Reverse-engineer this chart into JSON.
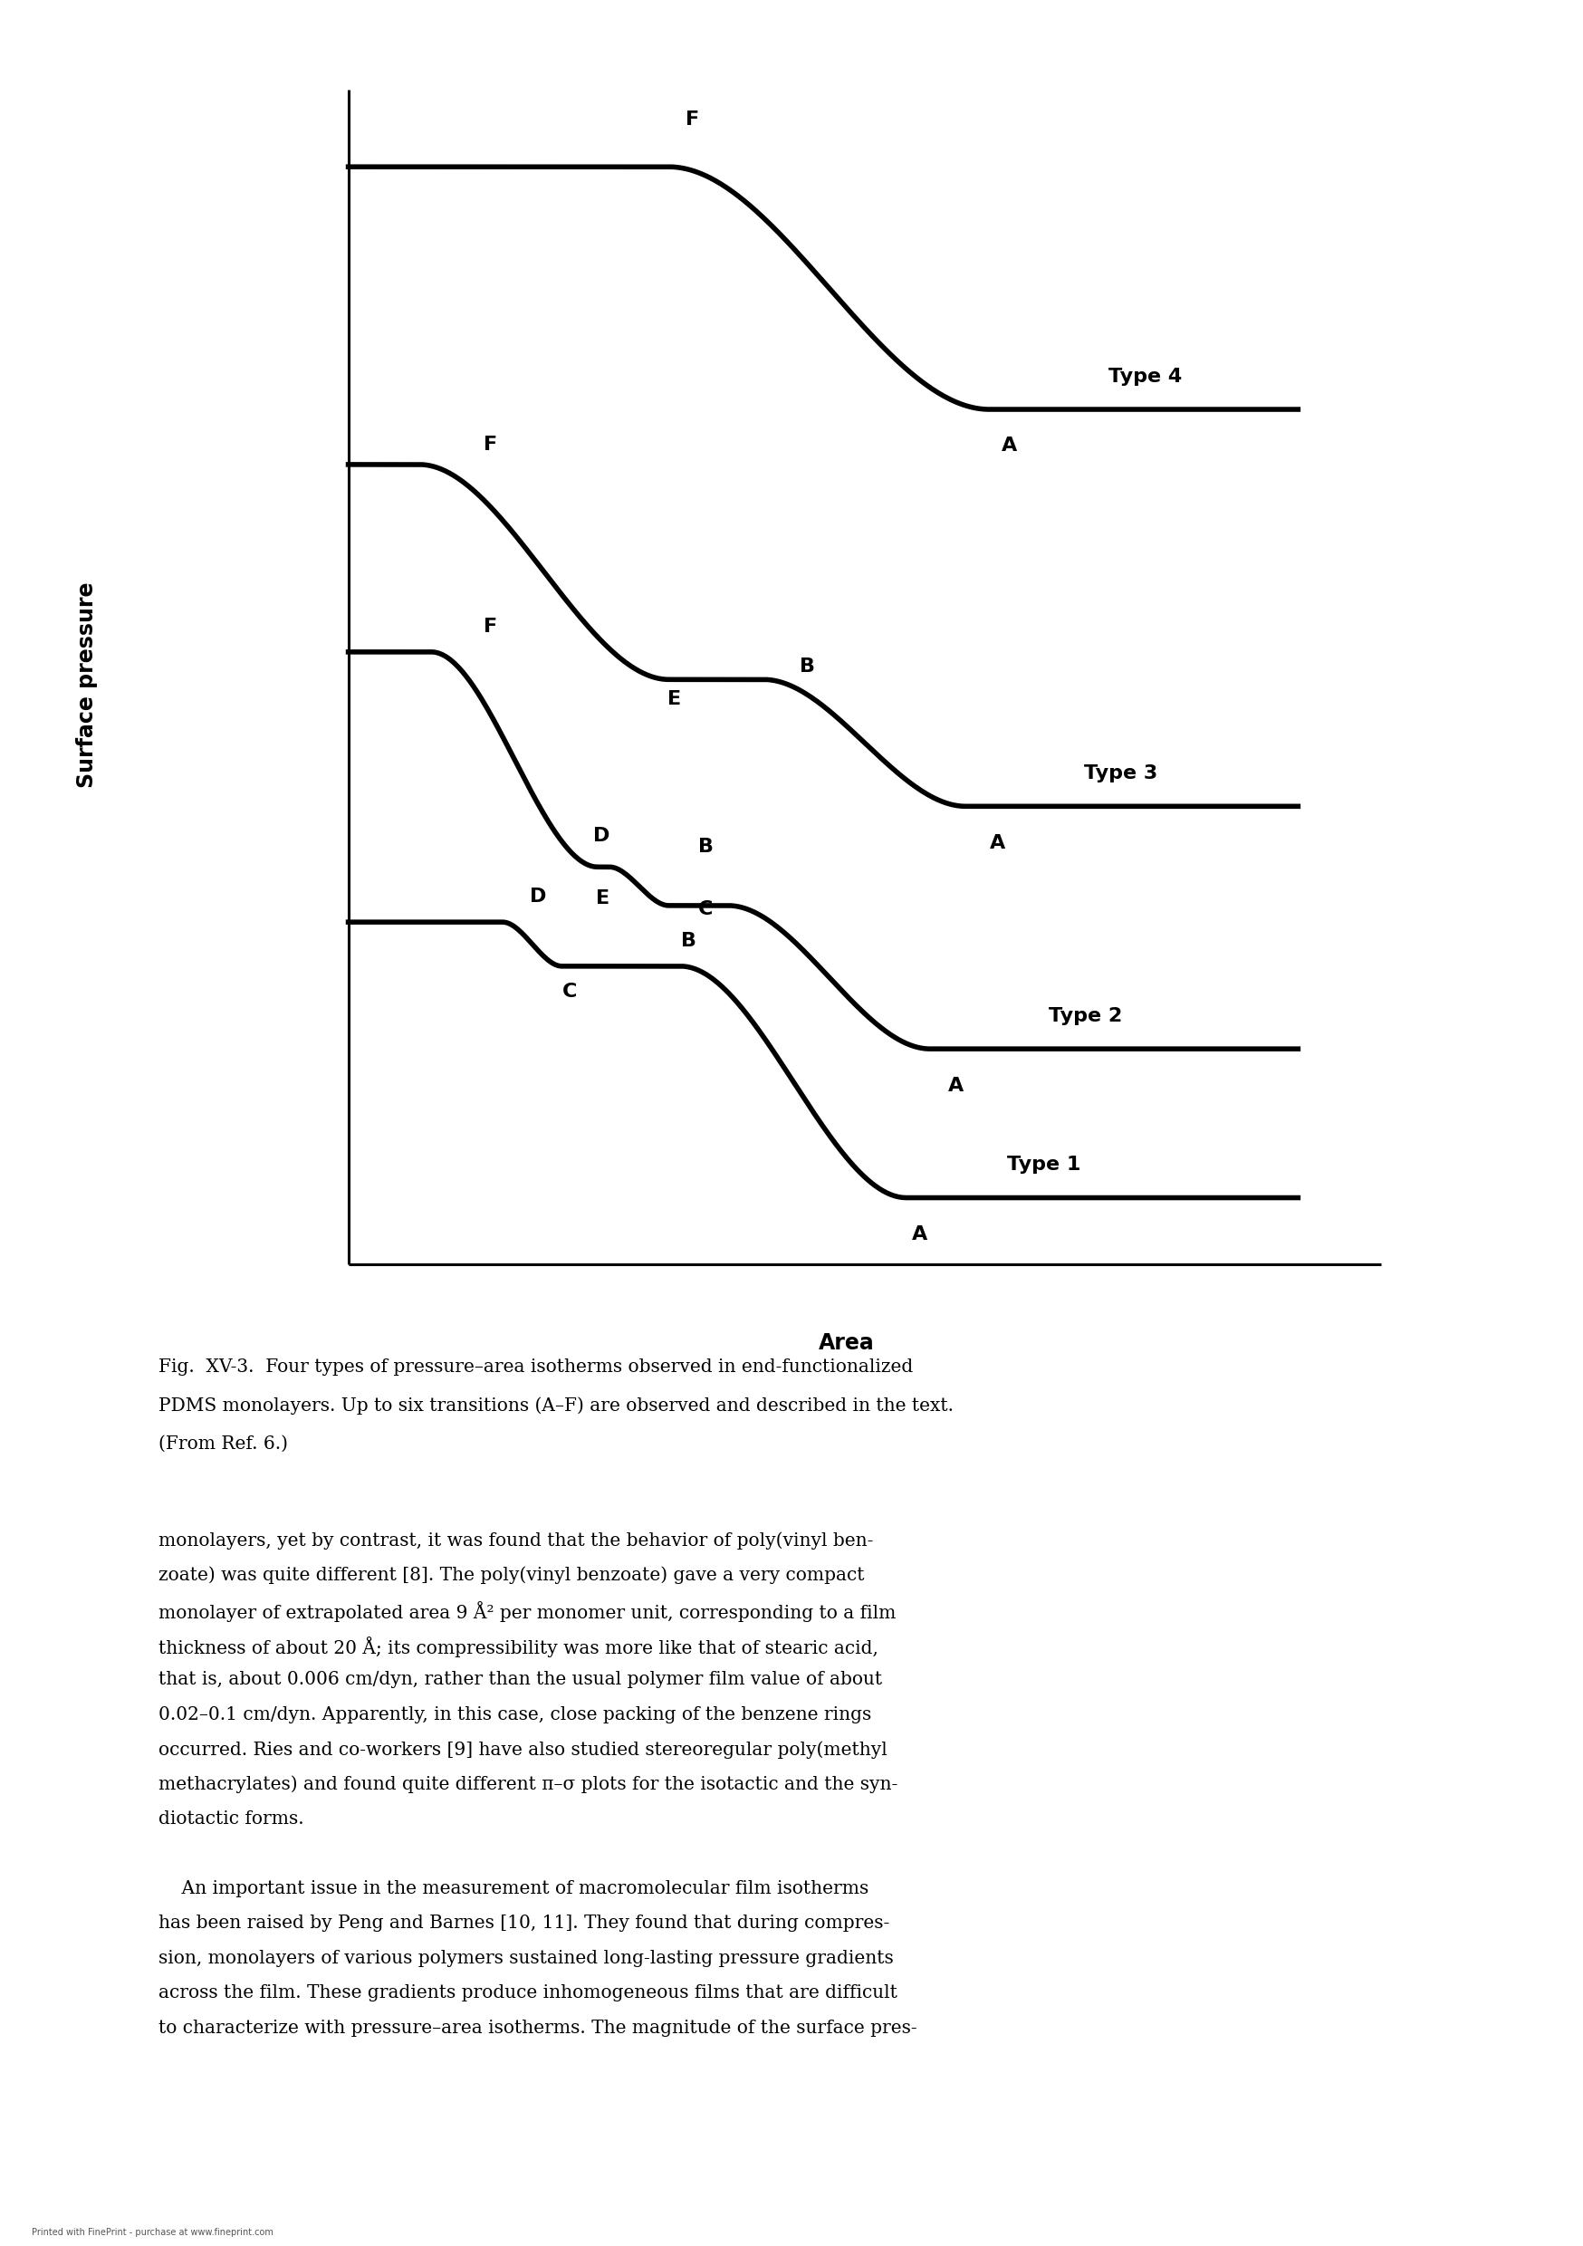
{
  "background_color": "#ffffff",
  "line_color": "#000000",
  "line_width": 4.0,
  "ylabel": "Surface pressure",
  "xlabel": "Area",
  "xlabel_fontsize": 17,
  "ylabel_fontsize": 17,
  "label_fontsize": 16,
  "type_fontsize": 16,
  "caption_fontsize": 14.5,
  "body_fontsize": 14.5,
  "caption_lines": [
    "Fig.  XV-3.  Four types of pressure–area isotherms observed in end-functionalized",
    "PDMS monolayers. Up to six transitions (A–F) are observed and described in the text.",
    "(From Ref. 6.)"
  ],
  "body_text_lines": [
    "monolayers, yet by contrast, it was found that the behavior of poly(vinyl ben-",
    "zoate) was quite different [8]. The poly(vinyl benzoate) gave a very compact",
    "monolayer of extrapolated area 9 Å² per monomer unit, corresponding to a film",
    "thickness of about 20 Å; its compressibility was more like that of stearic acid,",
    "that is, about 0.006 cm/dyn, rather than the usual polymer film value of about",
    "0.02–0.1 cm/dyn. Apparently, in this case, close packing of the benzene rings",
    "occurred. Ries and co-workers [9] have also studied stereoregular poly(methyl",
    "methacrylates) and found quite different π–σ plots for the isotactic and the syn-",
    "diotactic forms.",
    "",
    "    An important issue in the measurement of macromolecular film isotherms",
    "has been raised by Peng and Barnes [10, 11]. They found that during compres-",
    "sion, monolayers of various polymers sustained long-lasting pressure gradients",
    "across the film. These gradients produce inhomogeneous films that are difficult",
    "to characterize with pressure–area isotherms. The magnitude of the surface pres-"
  ]
}
